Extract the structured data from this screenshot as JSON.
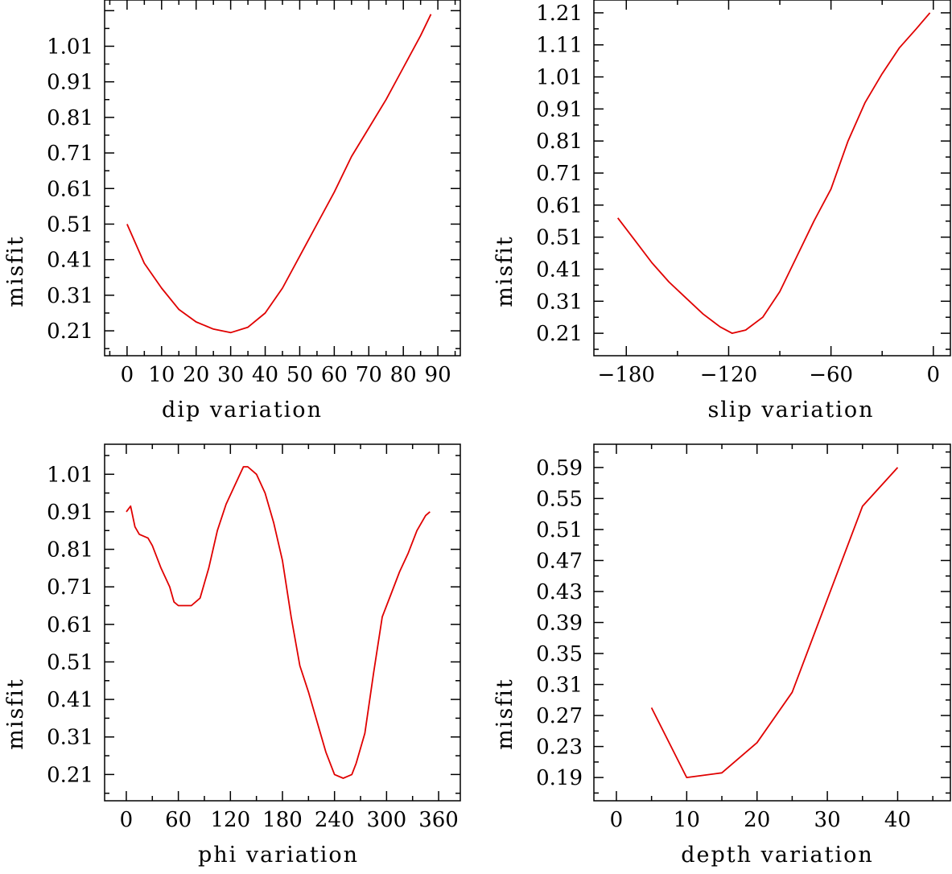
{
  "colors": {
    "series": "#e00000",
    "axes": "#000000",
    "background": "#ffffff"
  },
  "chart_data": [
    {
      "type": "line",
      "xlabel": "dip     variation",
      "ylabel": "misfit",
      "xlim": [
        -6.5,
        96.5
      ],
      "ylim": [
        0.14,
        1.14
      ],
      "xticks": [
        0,
        10,
        20,
        30,
        40,
        50,
        60,
        70,
        80,
        90
      ],
      "xtick_labels": [
        "0",
        "10",
        "20",
        "30",
        "40",
        "50",
        "60",
        "70",
        "80",
        "90"
      ],
      "yticks": [
        0.21,
        0.31,
        0.41,
        0.51,
        0.61,
        0.71,
        0.81,
        0.91,
        1.01
      ],
      "ytick_labels": [
        "0.21",
        "0.31",
        "0.41",
        "0.51",
        "0.61",
        "0.71",
        "0.81",
        "0.91",
        "1.01"
      ],
      "series": [
        {
          "name": "dip",
          "x": [
            0,
            5,
            10,
            15,
            20,
            25,
            30,
            35,
            40,
            45,
            50,
            55,
            60,
            65,
            70,
            75,
            80,
            85,
            88
          ],
          "y": [
            0.51,
            0.4,
            0.33,
            0.27,
            0.235,
            0.215,
            0.205,
            0.22,
            0.26,
            0.33,
            0.42,
            0.51,
            0.6,
            0.7,
            0.78,
            0.86,
            0.95,
            1.04,
            1.1
          ]
        }
      ]
    },
    {
      "type": "line",
      "xlabel": "slip    variation",
      "ylabel": "misfit",
      "xlim": [
        -199,
        10
      ],
      "ylim": [
        0.14,
        1.25
      ],
      "xticks": [
        -180,
        -120,
        -60,
        0
      ],
      "xtick_labels": [
        "−180",
        "−120",
        "−60",
        "0"
      ],
      "yticks": [
        0.21,
        0.31,
        0.41,
        0.51,
        0.61,
        0.71,
        0.81,
        0.91,
        1.01,
        1.11,
        1.21
      ],
      "ytick_labels": [
        "0.21",
        "0.31",
        "0.41",
        "0.51",
        "0.61",
        "0.71",
        "0.81",
        "0.91",
        "1.01",
        "1.11",
        "1.21"
      ],
      "series": [
        {
          "name": "slip",
          "x": [
            -185,
            -175,
            -165,
            -155,
            -145,
            -135,
            -125,
            -118,
            -110,
            -100,
            -90,
            -80,
            -70,
            -60,
            -50,
            -40,
            -30,
            -20,
            -10,
            -2
          ],
          "y": [
            0.57,
            0.5,
            0.43,
            0.37,
            0.32,
            0.27,
            0.23,
            0.21,
            0.22,
            0.26,
            0.34,
            0.45,
            0.56,
            0.66,
            0.81,
            0.93,
            1.02,
            1.1,
            1.16,
            1.21
          ]
        }
      ]
    },
    {
      "type": "line",
      "xlabel": "phi     variation",
      "ylabel": "misfit",
      "xlim": [
        -25,
        385
      ],
      "ylim": [
        0.14,
        1.09
      ],
      "xticks": [
        0,
        60,
        120,
        180,
        240,
        300,
        360
      ],
      "xtick_labels": [
        "0",
        "60",
        "120",
        "180",
        "240",
        "300",
        "360"
      ],
      "yticks": [
        0.21,
        0.31,
        0.41,
        0.51,
        0.61,
        0.71,
        0.81,
        0.91,
        1.01
      ],
      "ytick_labels": [
        "0.21",
        "0.31",
        "0.41",
        "0.51",
        "0.61",
        "0.71",
        "0.81",
        "0.91",
        "1.01"
      ],
      "series": [
        {
          "name": "phi",
          "x": [
            0,
            5,
            10,
            15,
            25,
            30,
            40,
            50,
            55,
            60,
            65,
            75,
            85,
            95,
            105,
            115,
            125,
            135,
            140,
            150,
            160,
            170,
            180,
            190,
            200,
            210,
            220,
            230,
            240,
            250,
            255,
            260,
            265,
            275,
            285,
            295,
            305,
            315,
            325,
            335,
            345,
            350
          ],
          "y": [
            0.91,
            0.925,
            0.87,
            0.85,
            0.84,
            0.82,
            0.76,
            0.71,
            0.67,
            0.66,
            0.66,
            0.66,
            0.68,
            0.76,
            0.86,
            0.93,
            0.98,
            1.03,
            1.03,
            1.01,
            0.96,
            0.88,
            0.78,
            0.63,
            0.5,
            0.43,
            0.35,
            0.27,
            0.21,
            0.2,
            0.205,
            0.21,
            0.24,
            0.32,
            0.48,
            0.63,
            0.69,
            0.75,
            0.8,
            0.86,
            0.9,
            0.91
          ]
        }
      ]
    },
    {
      "type": "line",
      "xlabel": "depth   variation",
      "ylabel": "misfit",
      "xlim": [
        -3.2,
        47.5
      ],
      "ylim": [
        0.16,
        0.62
      ],
      "xticks": [
        0,
        10,
        20,
        30,
        40
      ],
      "xtick_labels": [
        "0",
        "10",
        "20",
        "30",
        "40"
      ],
      "yticks": [
        0.19,
        0.23,
        0.27,
        0.31,
        0.35,
        0.39,
        0.43,
        0.47,
        0.51,
        0.55,
        0.59
      ],
      "ytick_labels": [
        "0.19",
        "0.23",
        "0.27",
        "0.31",
        "0.35",
        "0.39",
        "0.43",
        "0.47",
        "0.51",
        "0.55",
        "0.59"
      ],
      "series": [
        {
          "name": "depth",
          "x": [
            5,
            10,
            15,
            20,
            25,
            30,
            35,
            40
          ],
          "y": [
            0.28,
            0.19,
            0.196,
            0.235,
            0.3,
            0.42,
            0.54,
            0.59
          ]
        }
      ]
    }
  ]
}
